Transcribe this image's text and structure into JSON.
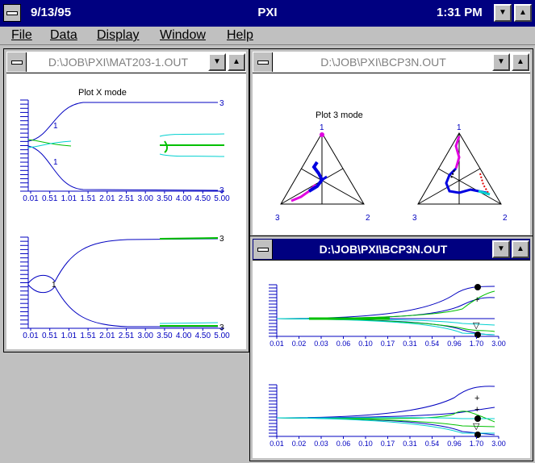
{
  "app": {
    "date": "9/13/95",
    "name": "PXI",
    "time": "1:31 PM"
  },
  "menu": [
    "File",
    "Data",
    "Display",
    "Window",
    "Help"
  ],
  "windows": {
    "mat203": {
      "title": "D:\\JOB\\PXI\\MAT203-1.OUT",
      "plot_title": "Plot X mode",
      "x_ticks": [
        "0.01",
        "0.51",
        "1.01",
        "1.51",
        "2.01",
        "2.51",
        "3.00",
        "3.50",
        "4.00",
        "4.50",
        "5.00"
      ],
      "end_label": "3",
      "mid_label": "1"
    },
    "bcp3n_top": {
      "title": "D:\\JOB\\PXI\\BCP3N.OUT",
      "plot_title": "Plot 3 mode",
      "vertex_labels": [
        "1",
        "2",
        "3"
      ]
    },
    "bcp3n_active": {
      "title": "D:\\JOB\\PXI\\BCP3N.OUT",
      "x_ticks": [
        "0.01",
        "0.02",
        "0.03",
        "0.06",
        "0.10",
        "0.17",
        "0.31",
        "0.54",
        "0.96",
        "1.70",
        "3.00"
      ]
    }
  },
  "colors": {
    "title_active": "#000080",
    "curve_blue": "#0000c0",
    "curve_cyan": "#00d0d0",
    "curve_green": "#00c000",
    "magenta": "#e000e0",
    "axis_text": "#0000c0"
  }
}
